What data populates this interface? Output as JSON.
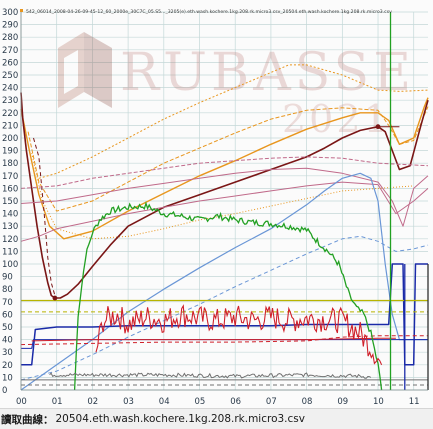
{
  "window": {
    "legend_text": "542_06014_2008-04-26-09-45-12_60_2000e_30C7C_05.S5..._3205(e).eth.wash.kochere.1kg.208.rk.micro3.csv_20504.eth.wash.kochere.1kg.208.rk.micro3.csv"
  },
  "watermark": {
    "brand": "RUBASSE",
    "year": "2021"
  },
  "status_bar": {
    "label": "讀取曲線：",
    "file": "20504.eth.wash.kochere.1kg.208.rk.micro3.csv"
  },
  "colors": {
    "grid": "#c4d8d8",
    "axis_text": "#2a3a4a",
    "orange": "#e8961e",
    "dark_red": "#7a1616",
    "green": "#22a022",
    "red": "#d0202a",
    "blue": "#1a2aa8",
    "light_blue": "#6a96d6",
    "pink": "#c06a8a",
    "olive": "#b8b400",
    "gray": "#707070"
  },
  "chart_data": {
    "type": "line",
    "title": "",
    "xlabel": "",
    "ylabel": "",
    "xlim": [
      0,
      11.4
    ],
    "ylim": [
      0,
      300
    ],
    "x_ticks": [
      "00",
      "01",
      "02",
      "03",
      "04",
      "05",
      "06",
      "07",
      "08",
      "09",
      "10",
      "11"
    ],
    "y_ticks": [
      "0",
      "10",
      "20",
      "30",
      "40",
      "50",
      "60",
      "70",
      "80",
      "90",
      "100",
      "110",
      "120",
      "130",
      "140",
      "150",
      "160",
      "170",
      "180",
      "190",
      "200",
      "210",
      "220",
      "230",
      "240",
      "250",
      "260",
      "270",
      "280",
      "290",
      "300"
    ],
    "series": [
      {
        "key": "orange_top_dotted",
        "color": "#e8961e",
        "dash": "2,2",
        "width": 1,
        "x": [
          0.5,
          1,
          2,
          3,
          4,
          5,
          6,
          7,
          7.5,
          8,
          9,
          10,
          10.6,
          11.4
        ],
        "y": [
          168,
          172,
          185,
          200,
          215,
          228,
          240,
          252,
          258,
          258,
          250,
          238,
          237,
          238
        ]
      },
      {
        "key": "orange_main",
        "color": "#e8961e",
        "dash": "",
        "width": 1.4,
        "x": [
          0,
          0.25,
          0.5,
          0.8,
          1.2,
          2,
          3,
          4,
          5,
          6,
          7,
          8,
          9,
          9.5,
          10,
          10.3,
          10.6,
          11,
          11.3,
          11.4
        ],
        "y": [
          223,
          188,
          155,
          130,
          120,
          126,
          142,
          156,
          170,
          182,
          195,
          207,
          216,
          220,
          220,
          214,
          195,
          200,
          225,
          232
        ]
      },
      {
        "key": "orange_dashed",
        "color": "#e8961e",
        "dash": "4,2",
        "width": 1,
        "x": [
          0.2,
          0.5,
          1,
          2,
          3,
          4,
          5,
          6,
          7,
          8,
          9,
          10,
          10.3,
          10.6,
          11,
          11.4
        ],
        "y": [
          205,
          165,
          142,
          150,
          165,
          180,
          192,
          204,
          215,
          222,
          224,
          222,
          210,
          195,
          198,
          225
        ]
      },
      {
        "key": "orange_dotted_low",
        "color": "#e8961e",
        "dash": "1,2",
        "width": 1,
        "x": [
          0.3,
          0.6,
          1,
          2,
          3,
          4,
          5,
          6,
          7,
          8,
          9,
          10,
          11
        ],
        "y": [
          188,
          150,
          128,
          120,
          122,
          128,
          135,
          140,
          146,
          152,
          158,
          160,
          162
        ]
      },
      {
        "key": "dark_red_bt",
        "color": "#7a1616",
        "dash": "",
        "width": 1.6,
        "x": [
          0,
          0.05,
          0.15,
          0.3,
          0.45,
          0.6,
          0.75,
          0.85,
          0.95,
          1.1,
          1.3,
          1.6,
          2,
          2.5,
          3,
          4,
          5,
          6,
          7,
          8,
          8.5,
          9,
          9.5,
          10,
          10.2,
          10.4,
          10.6,
          10.9,
          11.2,
          11.4
        ],
        "y": [
          236,
          215,
          190,
          160,
          130,
          105,
          85,
          75,
          73,
          73,
          76,
          84,
          98,
          115,
          130,
          145,
          155,
          165,
          175,
          185,
          192,
          200,
          206,
          209,
          205,
          190,
          175,
          178,
          210,
          230
        ]
      },
      {
        "key": "dark_red_dashed",
        "color": "#7a1616",
        "dash": "4,3",
        "width": 1,
        "x": [
          0.35,
          0.5,
          0.65,
          0.75,
          0.85,
          0.95
        ],
        "y": [
          200,
          185,
          140,
          105,
          85,
          75
        ]
      },
      {
        "key": "dark_red_hline",
        "color": "#7a1616",
        "dash": "",
        "width": 1,
        "x": [
          10,
          10.6
        ],
        "y": [
          209,
          209
        ]
      },
      {
        "key": "pink_upper",
        "color": "#c06a8a",
        "dash": "",
        "width": 1,
        "x": [
          0,
          1,
          2,
          3,
          4,
          5,
          6,
          7,
          8,
          9,
          10,
          10.4,
          10.7,
          11,
          11.4
        ],
        "y": [
          148,
          150,
          155,
          160,
          164,
          168,
          172,
          175,
          176,
          172,
          165,
          150,
          130,
          160,
          170
        ]
      },
      {
        "key": "pink_lower",
        "color": "#c06a8a",
        "dash": "",
        "width": 1,
        "x": [
          0,
          0.5,
          1,
          2,
          3,
          4,
          5,
          6,
          7,
          8,
          9,
          10,
          10.5,
          11,
          11.4
        ],
        "y": [
          118,
          122,
          128,
          134,
          140,
          145,
          150,
          154,
          158,
          162,
          165,
          163,
          140,
          150,
          160
        ]
      },
      {
        "key": "pink_dashed",
        "color": "#c06a8a",
        "dash": "4,2",
        "width": 1,
        "x": [
          0,
          1,
          2,
          3,
          4,
          5,
          6,
          7,
          8,
          9,
          10,
          11.4
        ],
        "y": [
          160,
          162,
          168,
          172,
          176,
          180,
          182,
          184,
          185,
          184,
          180,
          178
        ]
      },
      {
        "key": "light_blue",
        "color": "#6a96d6",
        "dash": "",
        "width": 1.2,
        "x": [
          0,
          0.5,
          1,
          2,
          3,
          4,
          5,
          6,
          7,
          8,
          8.5,
          9,
          9.5,
          9.8,
          10,
          10.2,
          10.4,
          10.6,
          11,
          11.4
        ],
        "y": [
          0,
          10,
          20,
          40,
          62,
          80,
          97,
          113,
          128,
          147,
          158,
          168,
          172,
          168,
          150,
          100,
          60,
          40,
          40,
          40
        ]
      },
      {
        "key": "light_blue_dashed",
        "color": "#6a96d6",
        "dash": "4,3",
        "width": 1,
        "x": [
          0,
          1,
          2,
          3,
          4,
          5,
          6,
          7,
          8,
          9,
          9.5,
          10,
          10.5,
          11,
          11.4
        ],
        "y": [
          8,
          15,
          28,
          42,
          55,
          68,
          82,
          95,
          108,
          120,
          122,
          118,
          110,
          112,
          115
        ]
      },
      {
        "key": "blue_main",
        "color": "#1a2aa8",
        "dash": "",
        "width": 1.5,
        "x": [
          0,
          0.3,
          0.4,
          1,
          2,
          3,
          4,
          5,
          6,
          7,
          8,
          9,
          10,
          10.3,
          10.4,
          10.7,
          10.75,
          11,
          11.05,
          11.4
        ],
        "y": [
          20,
          20,
          48,
          50,
          50,
          51,
          51,
          51,
          51,
          51,
          52,
          52,
          52,
          52,
          100,
          100,
          20,
          20,
          100,
          100
        ]
      },
      {
        "key": "blue_low",
        "color": "#1a2aa8",
        "dash": "",
        "width": 1,
        "x": [
          0,
          0.3,
          0.35,
          2,
          4,
          6,
          8,
          10,
          11.4
        ],
        "y": [
          33,
          33,
          40,
          40,
          40,
          40,
          40,
          40,
          40
        ]
      },
      {
        "key": "red_lower",
        "color": "#d0202a",
        "dash": "",
        "width": 1,
        "x": [
          0.3,
          2,
          4,
          6,
          8,
          10,
          10.5
        ],
        "y": [
          39,
          40,
          40,
          40,
          40,
          41,
          41
        ]
      },
      {
        "key": "red_dashed",
        "color": "#d0202a",
        "dash": "4,3",
        "width": 1,
        "x": [
          0,
          2,
          4,
          6,
          8,
          9,
          10,
          11.4
        ],
        "y": [
          36,
          37,
          38,
          38,
          39,
          42,
          43,
          43
        ]
      },
      {
        "key": "olive_top",
        "color": "#b8b400",
        "dash": "",
        "width": 1.2,
        "x": [
          0,
          11.4
        ],
        "y": [
          71,
          71
        ]
      },
      {
        "key": "olive_mid",
        "color": "#b8b400",
        "dash": "4,3",
        "width": 1,
        "x": [
          0,
          11.4
        ],
        "y": [
          62,
          62
        ]
      },
      {
        "key": "gray_low",
        "color": "#707070",
        "dash": "",
        "width": 1,
        "x": [
          0,
          11.4
        ],
        "y": [
          8,
          8
        ]
      },
      {
        "key": "gray_dashed",
        "color": "#707070",
        "dash": "4,3",
        "width": 1,
        "x": [
          0,
          11.4
        ],
        "y": [
          4,
          4
        ]
      }
    ],
    "noisy_series": [
      {
        "key": "green_ror",
        "color": "#22a022",
        "width": 1.3,
        "noise": 2.5,
        "x": [
          1.5,
          1.6,
          1.8,
          2,
          2.2,
          2.5,
          3,
          3.5,
          4,
          4.5,
          5,
          5.5,
          6,
          6.5,
          7,
          7.5,
          8,
          8.3,
          8.6,
          8.9,
          9.2,
          9.4,
          9.6,
          9.8,
          10,
          10.1
        ],
        "y": [
          0,
          60,
          105,
          125,
          135,
          142,
          145,
          146,
          140,
          138,
          135,
          138,
          135,
          133,
          132,
          130,
          127,
          118,
          110,
          100,
          75,
          65,
          60,
          45,
          20,
          0
        ]
      },
      {
        "key": "red_power",
        "color": "#d0202a",
        "width": 1.1,
        "noise": 10,
        "x": [
          2.1,
          2.3,
          2.7,
          3,
          3.5,
          4,
          4.5,
          5,
          5.5,
          6,
          6.5,
          7,
          7.5,
          8,
          8.5,
          9,
          9.5,
          9.9,
          10.1
        ],
        "y": [
          30,
          55,
          60,
          52,
          58,
          55,
          60,
          57,
          55,
          58,
          55,
          58,
          55,
          57,
          56,
          55,
          45,
          30,
          20
        ]
      },
      {
        "key": "gray_noise",
        "color": "#707070",
        "width": 1,
        "noise": 1.5,
        "x": [
          0.8,
          2,
          4,
          6,
          8,
          9.5,
          9.8
        ],
        "y": [
          12,
          12,
          12,
          11,
          12,
          11,
          10
        ]
      }
    ],
    "vertical_lines": [
      {
        "key": "green_v",
        "color": "#22a022",
        "x": 10.35,
        "y0": 0,
        "y1": 300
      },
      {
        "key": "blue_v",
        "color": "#1a2aa8",
        "x": 10.75,
        "y0": 0,
        "y1": 100
      },
      {
        "key": "dark_v",
        "color": "#303030",
        "x": 11.4,
        "y0": 0,
        "y1": 100
      }
    ],
    "markers": [
      {
        "key": "turning_point",
        "color": "#7a1616",
        "x": 0.95,
        "y": 73
      },
      {
        "key": "end_point",
        "color": "#7a1616",
        "x": 10,
        "y": 209
      }
    ]
  }
}
